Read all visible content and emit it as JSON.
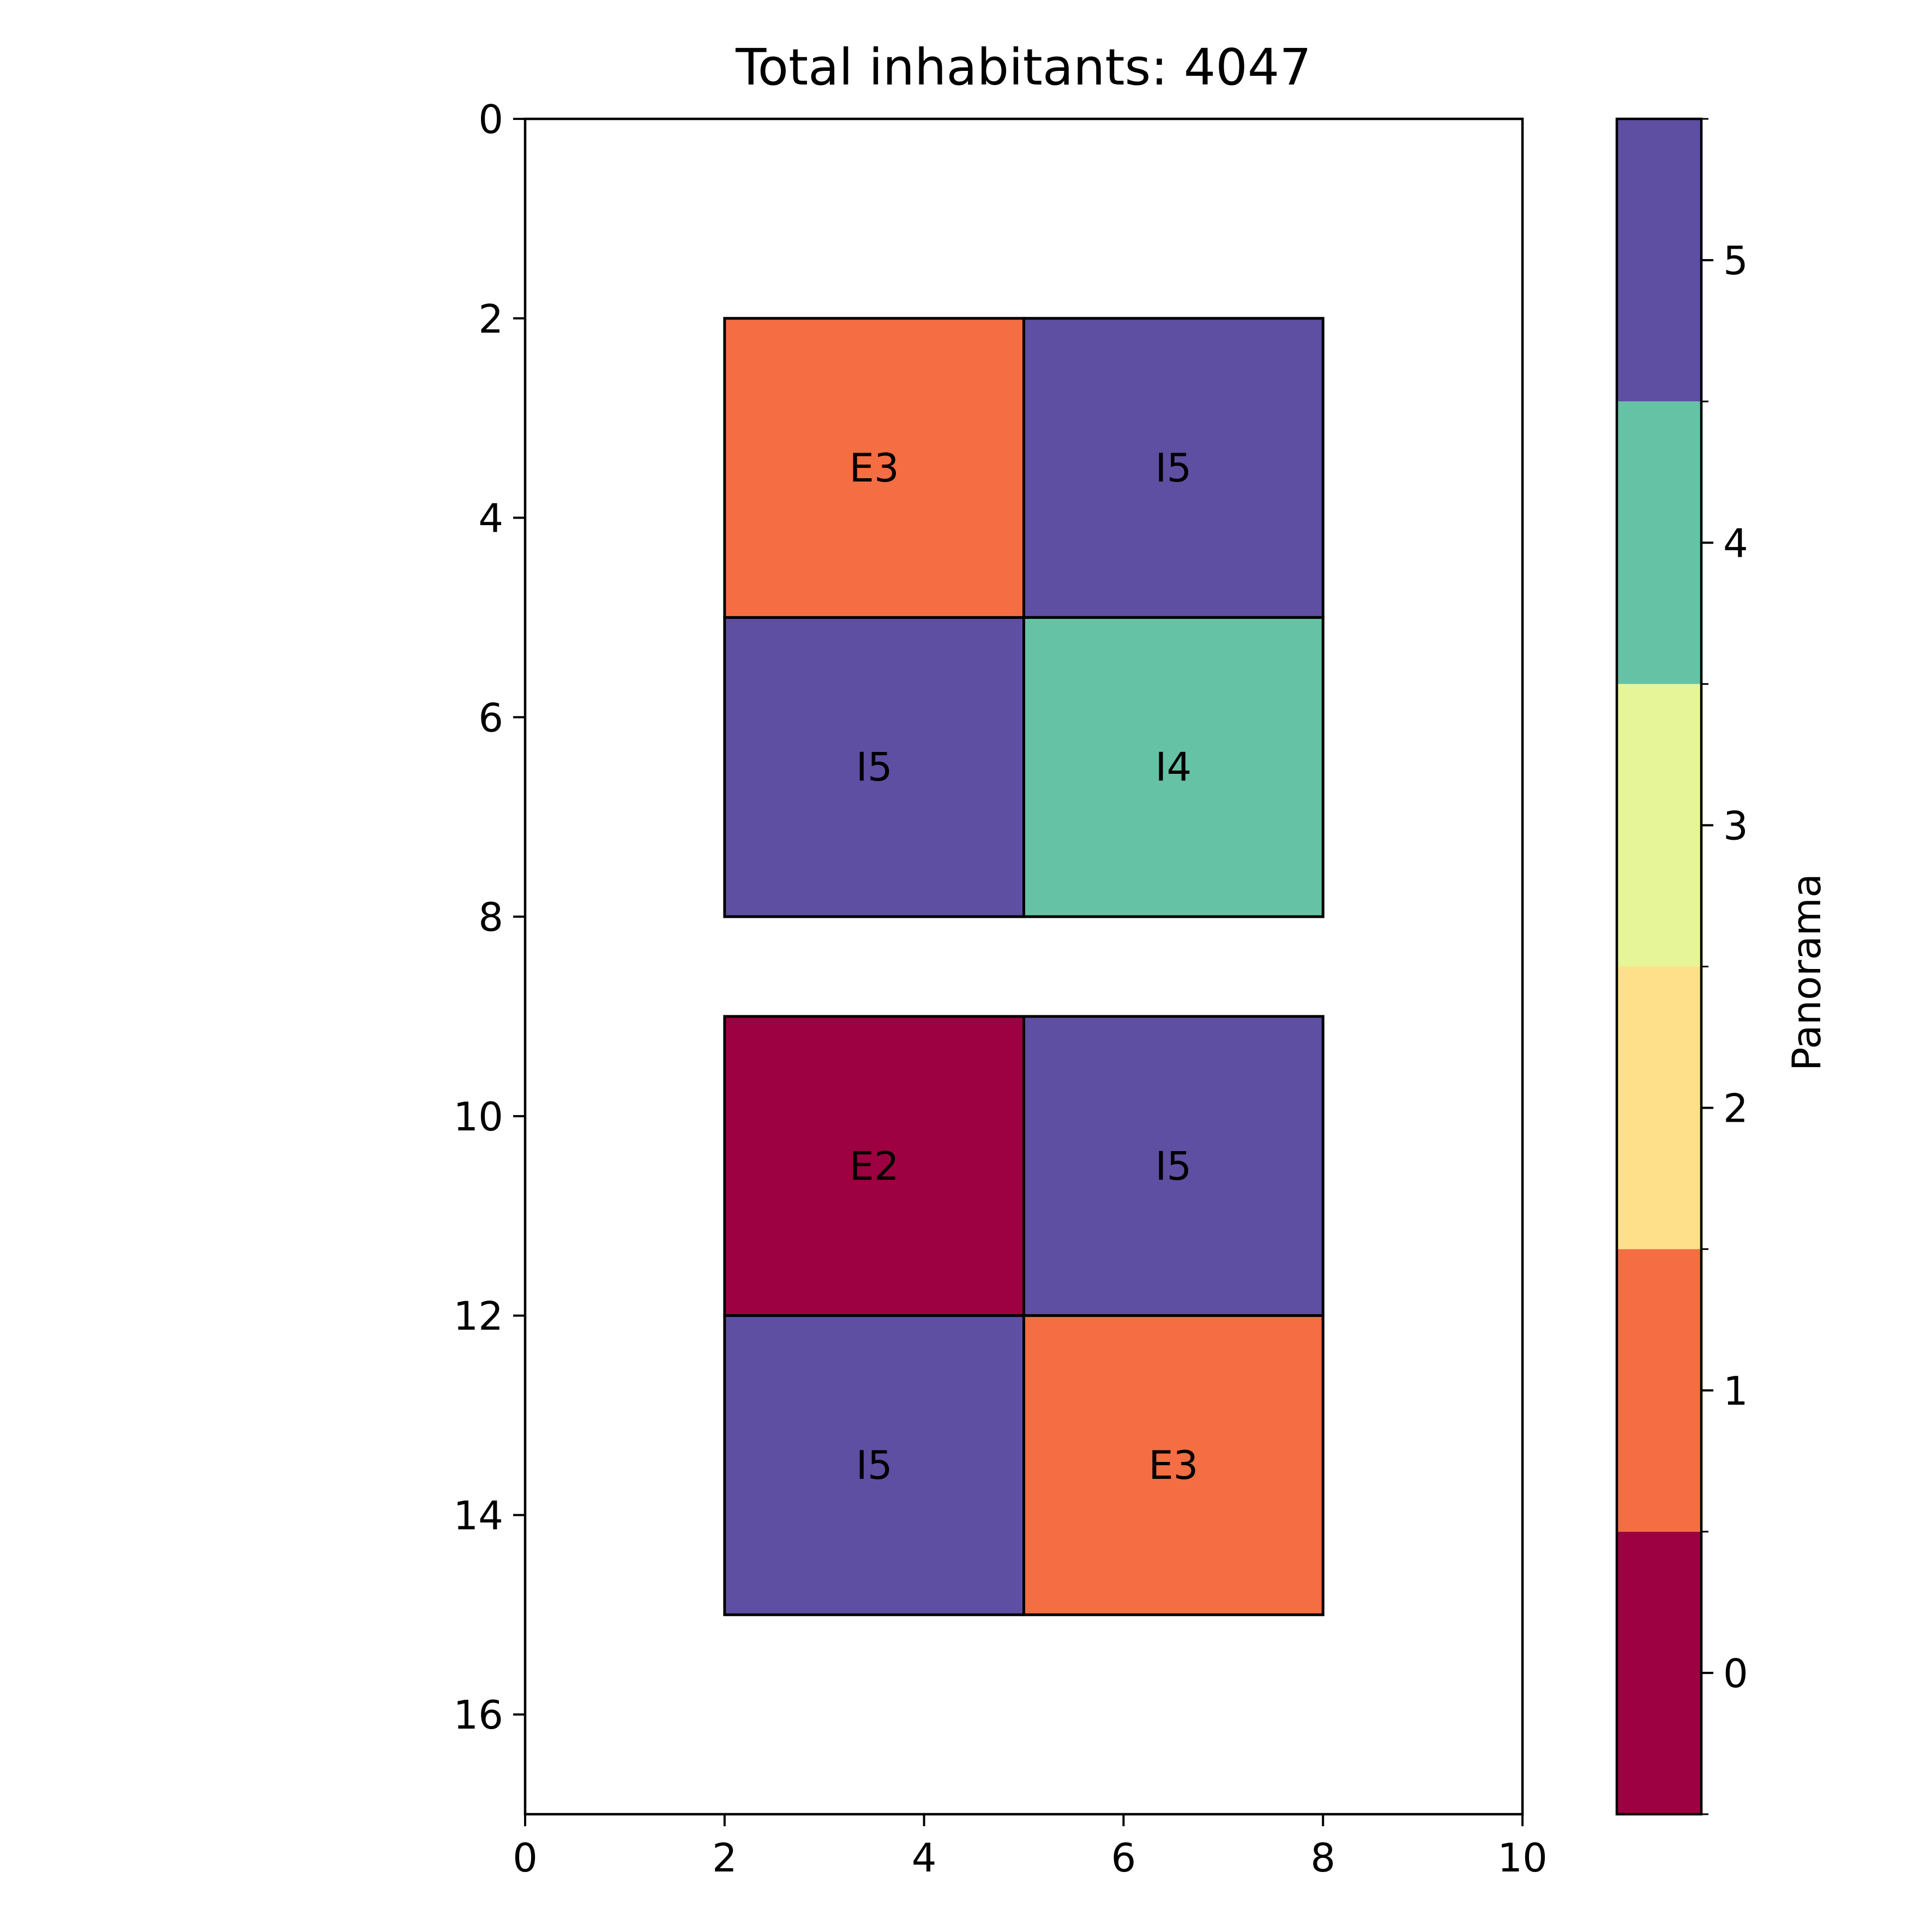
{
  "chart_data": {
    "type": "heatmap",
    "title": "Total inhabitants: 4047",
    "xlabel": "",
    "ylabel": "",
    "xlim": [
      0,
      10
    ],
    "ylim": [
      17,
      0
    ],
    "y_inverted": true,
    "x_ticks": [
      0,
      2,
      4,
      6,
      8,
      10
    ],
    "y_ticks": [
      0,
      2,
      4,
      6,
      8,
      10,
      12,
      14,
      16
    ],
    "grid": false,
    "cells": [
      {
        "x0": 2,
        "x1": 5,
        "y0": 2,
        "y1": 5,
        "value": 1,
        "label": "E3"
      },
      {
        "x0": 5,
        "x1": 8,
        "y0": 2,
        "y1": 5,
        "value": 5,
        "label": "I5"
      },
      {
        "x0": 2,
        "x1": 5,
        "y0": 5,
        "y1": 8,
        "value": 5,
        "label": "I5"
      },
      {
        "x0": 5,
        "x1": 8,
        "y0": 5,
        "y1": 8,
        "value": 4,
        "label": "I4"
      },
      {
        "x0": 2,
        "x1": 5,
        "y0": 9,
        "y1": 12,
        "value": 0,
        "label": "E2"
      },
      {
        "x0": 5,
        "x1": 8,
        "y0": 9,
        "y1": 12,
        "value": 5,
        "label": "I5"
      },
      {
        "x0": 2,
        "x1": 5,
        "y0": 12,
        "y1": 15,
        "value": 5,
        "label": "I5"
      },
      {
        "x0": 5,
        "x1": 8,
        "y0": 12,
        "y1": 15,
        "value": 1,
        "label": "E3"
      }
    ],
    "colorbar": {
      "label": "Panorama",
      "range": [
        -0.5,
        5.5
      ],
      "ticks": [
        0,
        1,
        2,
        3,
        4,
        5
      ],
      "colors": [
        "#9e0142",
        "#f46d43",
        "#fee08b",
        "#e6f598",
        "#66c2a5",
        "#5e4fa2"
      ]
    }
  }
}
